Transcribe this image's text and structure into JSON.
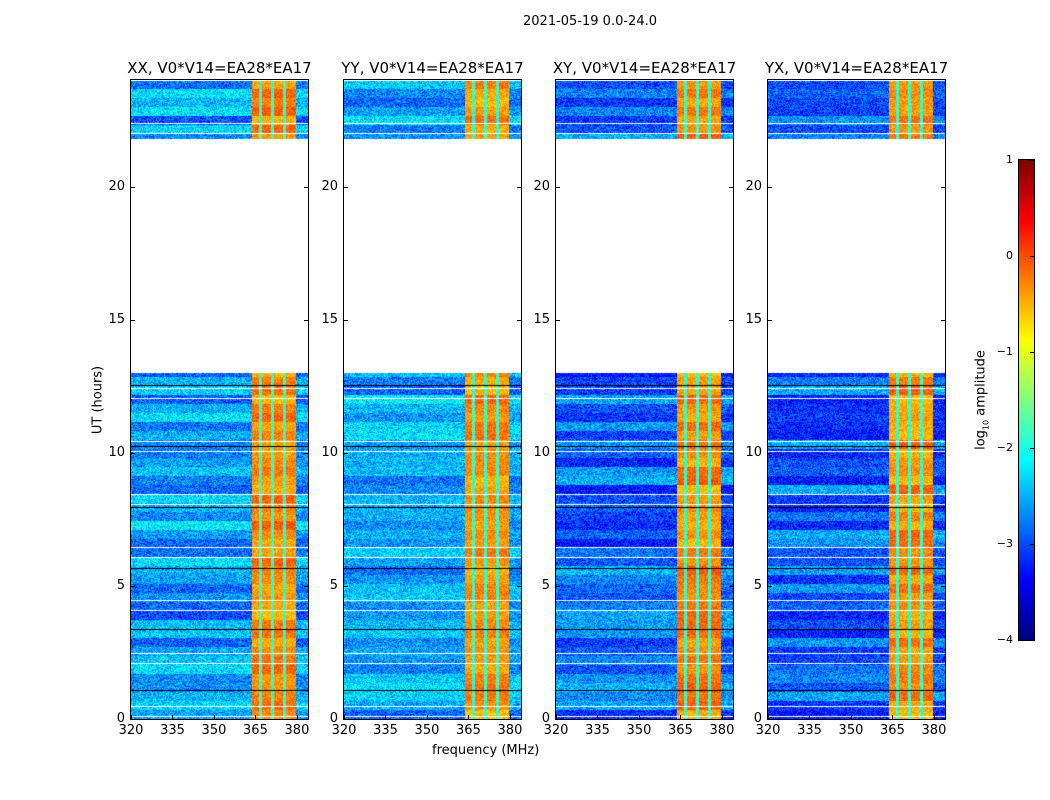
{
  "chart_data": {
    "type": "heatmap",
    "title": "2021-05-19 0.0-24.0",
    "xlabel": "frequency (MHz)",
    "ylabel": "UT (hours)",
    "xlim": [
      320,
      384
    ],
    "ylim": [
      0,
      24
    ],
    "xticks": [
      "320",
      "335",
      "350",
      "365",
      "380"
    ],
    "xtick_values": [
      320,
      335,
      350,
      365,
      380
    ],
    "yticks": [
      "0",
      "5",
      "10",
      "15",
      "20"
    ],
    "ytick_values": [
      0,
      5,
      10,
      15,
      20
    ],
    "panels": [
      {
        "title": "XX, V0*V14=EA28*EA17",
        "background_log_amp": -2.6
      },
      {
        "title": "YY, V0*V14=EA28*EA17",
        "background_log_amp": -2.5
      },
      {
        "title": "XY, V0*V14=EA28*EA17",
        "background_log_amp": -2.9
      },
      {
        "title": "YX, V0*V14=EA28*EA17",
        "background_log_amp": -2.9
      }
    ],
    "data_time_ranges_hours": [
      [
        0,
        13.0
      ],
      [
        21.8,
        24.0
      ]
    ],
    "strong_band_mhz": [
      363.5,
      379.5
    ],
    "strong_band_log_amp": -0.3,
    "colorbar": {
      "label": "log10 amplitude",
      "label_main": "log",
      "label_sub": "10",
      "label_rest": " amplitude",
      "range": [
        -4,
        1
      ],
      "ticks": [
        "1",
        "0",
        "−1",
        "−2",
        "−3",
        "−4"
      ],
      "tick_values": [
        1,
        0,
        -1,
        -2,
        -3,
        -4
      ],
      "colormap": "jet"
    }
  }
}
